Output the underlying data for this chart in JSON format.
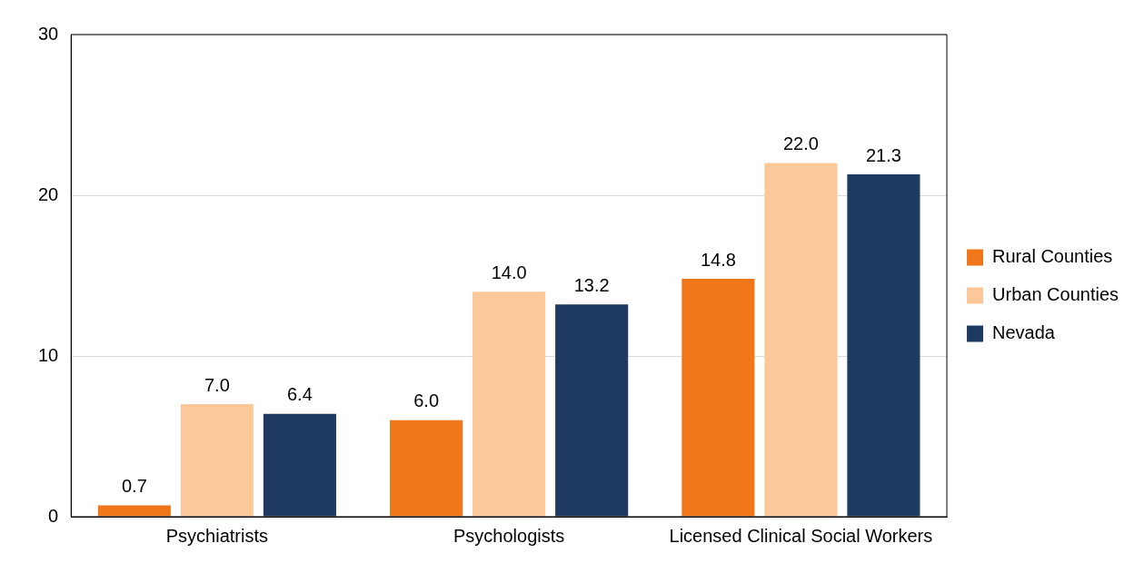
{
  "chart_data": {
    "type": "bar",
    "categories": [
      "Psychiatrists",
      "Psychologists",
      "Licensed Clinical Social Workers"
    ],
    "series": [
      {
        "name": "Rural Counties",
        "color": "#f07719",
        "values": [
          0.7,
          6.0,
          14.8
        ],
        "value_labels": [
          "0.7",
          "6.0",
          "14.8"
        ]
      },
      {
        "name": "Urban Counties",
        "color": "#fdc899",
        "values": [
          7.0,
          14.0,
          22.0
        ],
        "value_labels": [
          "7.0",
          "14.0",
          "22.0"
        ]
      },
      {
        "name": "Nevada",
        "color": "#1f3a60",
        "values": [
          6.4,
          13.2,
          21.3
        ],
        "value_labels": [
          "6.4",
          "13.2",
          "21.3"
        ]
      }
    ],
    "ylim": [
      0,
      30
    ],
    "yticks": [
      0,
      10,
      20,
      30
    ],
    "grid": "y",
    "legend": "right"
  }
}
